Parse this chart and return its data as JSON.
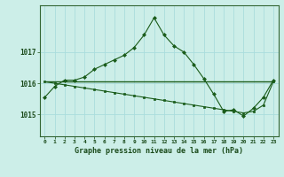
{
  "title": "Graphe pression niveau de la mer (hPa)",
  "background_color": "#cceee8",
  "grid_color": "#aadddd",
  "line_color": "#1a5c1a",
  "marker_color": "#1a5c1a",
  "xlim": [
    -0.5,
    23.5
  ],
  "ylim": [
    1014.3,
    1018.5
  ],
  "yticks": [
    1015,
    1016,
    1017
  ],
  "xtick_labels": [
    "0",
    "1",
    "2",
    "3",
    "4",
    "5",
    "6",
    "7",
    "8",
    "9",
    "10",
    "11",
    "12",
    "13",
    "14",
    "15",
    "16",
    "17",
    "18",
    "19",
    "20",
    "21",
    "22",
    "23"
  ],
  "series1": [
    1015.55,
    1015.9,
    1016.1,
    1016.1,
    1016.2,
    1016.45,
    1016.6,
    1016.75,
    1016.9,
    1017.15,
    1017.55,
    1018.1,
    1017.55,
    1017.2,
    1017.0,
    1016.6,
    1016.15,
    1015.65,
    1015.1,
    1015.15,
    1014.95,
    1015.2,
    1015.55,
    1016.1
  ],
  "series2": [
    1016.05,
    1016.05,
    1016.05,
    1016.05,
    1016.05,
    1016.05,
    1016.05,
    1016.05,
    1016.05,
    1016.05,
    1016.05,
    1016.05,
    1016.05,
    1016.05,
    1016.05,
    1016.05,
    1016.05,
    1016.05,
    1016.05,
    1016.05,
    1016.05,
    1016.05,
    1016.05,
    1016.05
  ],
  "series3": [
    1016.05,
    1016.0,
    1015.95,
    1015.9,
    1015.85,
    1015.8,
    1015.75,
    1015.7,
    1015.65,
    1015.6,
    1015.55,
    1015.5,
    1015.45,
    1015.4,
    1015.35,
    1015.3,
    1015.25,
    1015.2,
    1015.15,
    1015.1,
    1015.05,
    1015.1,
    1015.3,
    1016.05
  ]
}
